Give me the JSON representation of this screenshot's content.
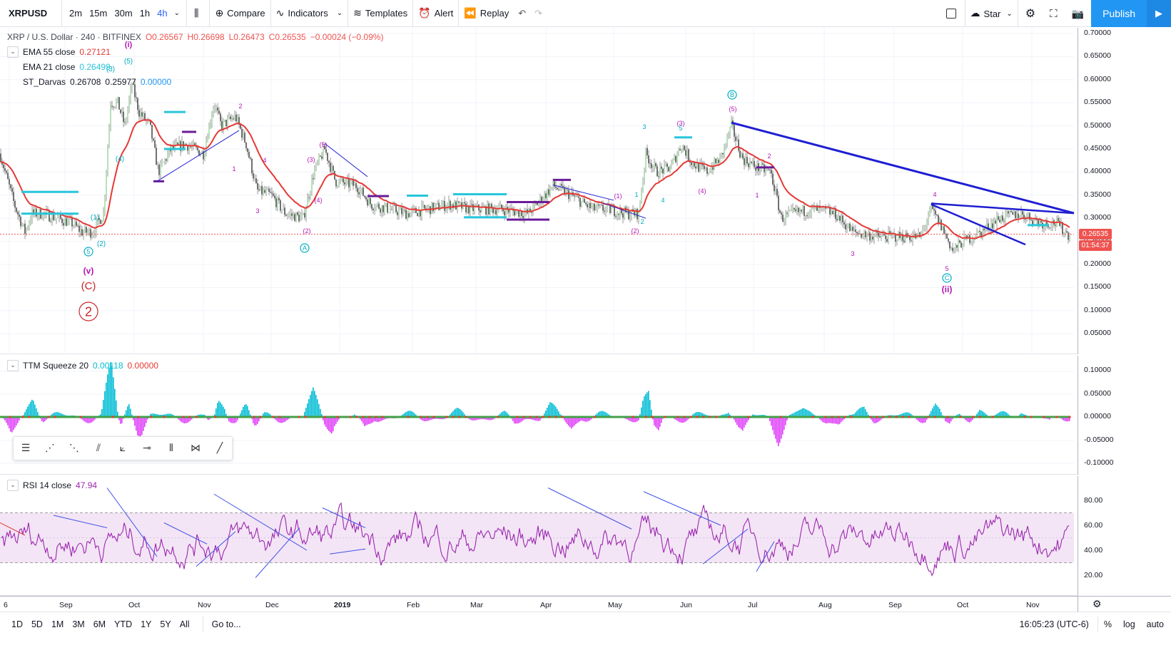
{
  "toolbar": {
    "symbol": "XRPUSD",
    "intervals": [
      "2m",
      "15m",
      "30m",
      "1h",
      "4h"
    ],
    "active_interval": "4h",
    "compare": "Compare",
    "indicators": "Indicators",
    "templates": "Templates",
    "alert": "Alert",
    "replay": "Replay",
    "star": "Star",
    "publish": "Publish"
  },
  "chart": {
    "title": "XRP / U.S. Dollar · 240 · BITFINEX",
    "open": "O0.26567",
    "high": "H0.26698",
    "low": "L0.26473",
    "close": "C0.26535",
    "change": "−0.00024 (−0.09%)",
    "ema55_label": "EMA 55 close",
    "ema55_value": "0.27121",
    "ema21_label": "EMA 21 close",
    "ema21_value": "0.26499",
    "darvas_label": "ST_Darvas",
    "darvas_v1": "0.26708",
    "darvas_v2": "0.25977",
    "darvas_v3": "0.00000",
    "last_price": "0.26535",
    "countdown": "01:54:37",
    "colors": {
      "up": "#26a69a",
      "down": "#ef5350",
      "ema": "#e53935",
      "trend": "#1e1ed2",
      "wave": "#b316b3",
      "cyan": "#00bcd4"
    }
  },
  "price_axis": [
    "0.70000",
    "0.65000",
    "0.60000",
    "0.55000",
    "0.50000",
    "0.45000",
    "0.40000",
    "0.35000",
    "0.30000",
    "0.25000",
    "0.20000",
    "0.15000",
    "0.10000",
    "0.05000"
  ],
  "ttm": {
    "label": "TTM Squeeze 20",
    "v1": "0.00118",
    "v2": "0.00000",
    "axis": [
      "0.10000",
      "0.05000",
      "0.00000",
      "-0.05000",
      "-0.10000"
    ]
  },
  "rsi": {
    "label": "RSI 14 close",
    "value": "47.94",
    "axis": [
      "80.00",
      "60.00",
      "40.00",
      "20.00"
    ]
  },
  "time_axis": [
    "6",
    "Sep",
    "Oct",
    "Nov",
    "Dec",
    "2019",
    "Feb",
    "Mar",
    "Apr",
    "May",
    "Jun",
    "Jul",
    "Aug",
    "Sep",
    "Oct",
    "Nov"
  ],
  "bottom": {
    "ranges": [
      "1D",
      "5D",
      "1M",
      "3M",
      "6M",
      "YTD",
      "1Y",
      "5Y",
      "All"
    ],
    "goto": "Go to...",
    "clock": "16:05:23 (UTC-6)",
    "percent": "%",
    "log": "log",
    "auto": "auto"
  },
  "waves": {
    "v_small": "(v)",
    "c_big": "(C)",
    "circle_two": "2",
    "wave_i": "(i)",
    "wave_ii": "(ii)",
    "circle_a": "A",
    "circle_b": "B",
    "circle_c": "C",
    "circle_five": "5",
    "labels": [
      {
        "t": "(1)"
      },
      {
        "t": "(2)"
      },
      {
        "t": "(3)"
      },
      {
        "t": "(4)"
      },
      {
        "t": "(5)"
      },
      {
        "t": "2"
      },
      {
        "t": "1"
      },
      {
        "t": "3"
      },
      {
        "t": "4"
      },
      {
        "t": "(3)"
      },
      {
        "t": "(5)"
      },
      {
        "t": "(4)"
      },
      {
        "t": "(2)"
      },
      {
        "t": "(1)"
      },
      {
        "t": "1"
      },
      {
        "t": "2"
      },
      {
        "t": "(2)"
      },
      {
        "t": "3"
      },
      {
        "t": "4"
      },
      {
        "t": "(3)"
      },
      {
        "t": "(4)"
      },
      {
        "t": "5"
      },
      {
        "t": "(5)"
      },
      {
        "t": "2"
      },
      {
        "t": "1"
      },
      {
        "t": "3"
      },
      {
        "t": "4"
      },
      {
        "t": "5"
      }
    ]
  }
}
